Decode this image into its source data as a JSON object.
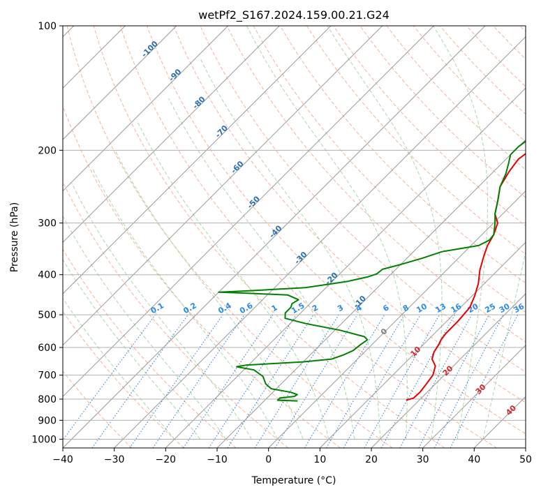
{
  "chart_data": {
    "type": "line",
    "title": "wetPf2_S167.2024.159.00.21.G24",
    "xlabel": "Temperature (°C)",
    "ylabel": "Pressure (hPa)",
    "xlim": [
      -40,
      50
    ],
    "ylim": [
      1050,
      100
    ],
    "y_scale": "log",
    "x_ticks": [
      -40,
      -30,
      -20,
      -10,
      0,
      10,
      20,
      30,
      40,
      50
    ],
    "x_tick_labels": [
      "−40",
      "−30",
      "−20",
      "−10",
      "0",
      "10",
      "20",
      "30",
      "40",
      "50"
    ],
    "y_ticks": [
      100,
      200,
      300,
      400,
      500,
      600,
      700,
      800,
      900,
      1000
    ],
    "y_tick_labels": [
      "100",
      "200",
      "300",
      "400",
      "500",
      "600",
      "700",
      "800",
      "900",
      "1000"
    ],
    "grid": true,
    "colors": {
      "temperature": "#e60000",
      "dewpoint": "#008000",
      "isotherm": "#999999",
      "dry_adiabat": "#f4a582",
      "moist_adiabat": "#9fd39f",
      "mixing_ratio": "#1f77d4",
      "isotherm_label": "#2a6fb0",
      "mixing_label": "#2a8ae6",
      "warm_label": "#d62728",
      "zero_label": "#808080"
    },
    "series": [
      {
        "name": "temperature",
        "points": [
          {
            "p": 805,
            "t": 17.5
          },
          {
            "p": 795,
            "t": 18.5
          },
          {
            "p": 770,
            "t": 18.6
          },
          {
            "p": 740,
            "t": 18.3
          },
          {
            "p": 700,
            "t": 17.8
          },
          {
            "p": 665,
            "t": 16.5
          },
          {
            "p": 640,
            "t": 14.5
          },
          {
            "p": 615,
            "t": 13.5
          },
          {
            "p": 590,
            "t": 13.0
          },
          {
            "p": 575,
            "t": 12.5
          },
          {
            "p": 555,
            "t": 12.2
          },
          {
            "p": 520,
            "t": 12.2
          },
          {
            "p": 480,
            "t": 11.8
          },
          {
            "p": 450,
            "t": 10.5
          },
          {
            "p": 420,
            "t": 8.8
          },
          {
            "p": 390,
            "t": 6.5
          },
          {
            "p": 360,
            "t": 4.5
          },
          {
            "p": 340,
            "t": 3.2
          },
          {
            "p": 320,
            "t": 2.3
          },
          {
            "p": 300,
            "t": 0.8
          },
          {
            "p": 285,
            "t": -1.5
          },
          {
            "p": 265,
            "t": -3.5
          },
          {
            "p": 245,
            "t": -5.8
          },
          {
            "p": 225,
            "t": -7.0
          },
          {
            "p": 210,
            "t": -7.6
          },
          {
            "p": 200,
            "t": -7.0
          },
          {
            "p": 190,
            "t": -4.5
          },
          {
            "p": 178,
            "t": -0.8
          },
          {
            "p": 168,
            "t": 1.3
          },
          {
            "p": 155,
            "t": 3.0
          },
          {
            "p": 140,
            "t": 6.0
          },
          {
            "p": 128,
            "t": 9.0
          },
          {
            "p": 118,
            "t": 10.8
          },
          {
            "p": 110,
            "t": 11.3
          },
          {
            "p": 105,
            "t": 12.0
          },
          {
            "p": 100,
            "t": 13.3
          }
        ]
      },
      {
        "name": "dewpoint",
        "points": [
          {
            "p": 808,
            "t": -3.5
          },
          {
            "p": 805,
            "t": -7.5
          },
          {
            "p": 795,
            "t": -7.5
          },
          {
            "p": 788,
            "t": -5.0
          },
          {
            "p": 780,
            "t": -4.8
          },
          {
            "p": 770,
            "t": -6.5
          },
          {
            "p": 755,
            "t": -11.0
          },
          {
            "p": 735,
            "t": -13.0
          },
          {
            "p": 705,
            "t": -15.0
          },
          {
            "p": 680,
            "t": -18.0
          },
          {
            "p": 668,
            "t": -22.0
          },
          {
            "p": 662,
            "t": -20.5
          },
          {
            "p": 650,
            "t": -10.0
          },
          {
            "p": 640,
            "t": -5.0
          },
          {
            "p": 625,
            "t": -3.5
          },
          {
            "p": 610,
            "t": -2.5
          },
          {
            "p": 590,
            "t": -2.2
          },
          {
            "p": 575,
            "t": -1.8
          },
          {
            "p": 565,
            "t": -3.0
          },
          {
            "p": 545,
            "t": -9.0
          },
          {
            "p": 525,
            "t": -17.0
          },
          {
            "p": 510,
            "t": -22.0
          },
          {
            "p": 495,
            "t": -23.0
          },
          {
            "p": 480,
            "t": -23.0
          },
          {
            "p": 470,
            "t": -23.5
          },
          {
            "p": 460,
            "t": -23.0
          },
          {
            "p": 448,
            "t": -26.0
          },
          {
            "p": 443,
            "t": -35.0
          },
          {
            "p": 441,
            "t": -40.0
          },
          {
            "p": 438,
            "t": -35.0
          },
          {
            "p": 430,
            "t": -24.0
          },
          {
            "p": 415,
            "t": -17.0
          },
          {
            "p": 405,
            "t": -14.0
          },
          {
            "p": 398,
            "t": -12.8
          },
          {
            "p": 388,
            "t": -12.6
          },
          {
            "p": 378,
            "t": -10.0
          },
          {
            "p": 365,
            "t": -7.0
          },
          {
            "p": 352,
            "t": -4.5
          },
          {
            "p": 340,
            "t": 1.5
          },
          {
            "p": 330,
            "t": 2.5
          },
          {
            "p": 320,
            "t": 2.3
          },
          {
            "p": 300,
            "t": 0.3
          },
          {
            "p": 285,
            "t": -1.5
          },
          {
            "p": 265,
            "t": -3.5
          },
          {
            "p": 245,
            "t": -5.8
          },
          {
            "p": 228,
            "t": -7.2
          },
          {
            "p": 215,
            "t": -8.7
          },
          {
            "p": 205,
            "t": -10.0
          },
          {
            "p": 196,
            "t": -10.0
          },
          {
            "p": 188,
            "t": -9.5
          },
          {
            "p": 180,
            "t": -8.5
          },
          {
            "p": 173,
            "t": -9.0
          },
          {
            "p": 166,
            "t": -8.0
          },
          {
            "p": 158,
            "t": -6.5
          },
          {
            "p": 148,
            "t": -5.5
          },
          {
            "p": 140,
            "t": -5.8
          },
          {
            "p": 132,
            "t": -6.0
          },
          {
            "p": 125,
            "t": -5.2
          },
          {
            "p": 118,
            "t": -3.5
          },
          {
            "p": 112,
            "t": -1.8
          },
          {
            "p": 107,
            "t": -1.0
          },
          {
            "p": 103,
            "t": -0.7
          },
          {
            "p": 100,
            "t": -0.3
          }
        ]
      }
    ],
    "isotherm_labels": [
      "-100",
      "-90",
      "-80",
      "-70",
      "-60",
      "-50",
      "-40",
      "-30",
      "-20",
      "-10"
    ],
    "mixing_ratio_labels": [
      "0.1",
      "0.2",
      "0.4",
      "0.6",
      "1",
      "1.5",
      "2",
      "3",
      "4",
      "6",
      "8",
      "10",
      "13",
      "16",
      "20",
      "25",
      "30",
      "36"
    ],
    "warm_isotherm_labels": [
      "0",
      "10",
      "20",
      "30",
      "40"
    ]
  }
}
